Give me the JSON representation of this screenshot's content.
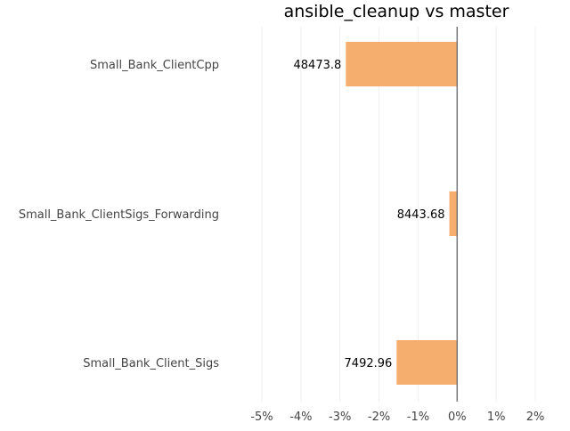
{
  "chart_data": {
    "type": "bar",
    "orientation": "horizontal",
    "title": "ansible_cleanup vs master",
    "xlabel": "",
    "ylabel": "",
    "categories": [
      "Small_Bank_ClientCpp",
      "Small_Bank_ClientSigs_Forwarding",
      "Small_Bank_Client_Sigs"
    ],
    "series": [
      {
        "values": [
          -2.85,
          -0.2,
          -1.55
        ],
        "labels": [
          "48473.8",
          "8443.68",
          "7492.96"
        ],
        "color": "#f5ae6e"
      }
    ],
    "xlim": [
      -5,
      2
    ],
    "xticks": [
      -5,
      -4,
      -3,
      -2,
      -1,
      0,
      1,
      2
    ],
    "xtick_labels": [
      "-5%",
      "-4%",
      "-3%",
      "-2%",
      "-1%",
      "0%",
      "1%",
      "2%"
    ],
    "grid": true,
    "legend": "none"
  }
}
